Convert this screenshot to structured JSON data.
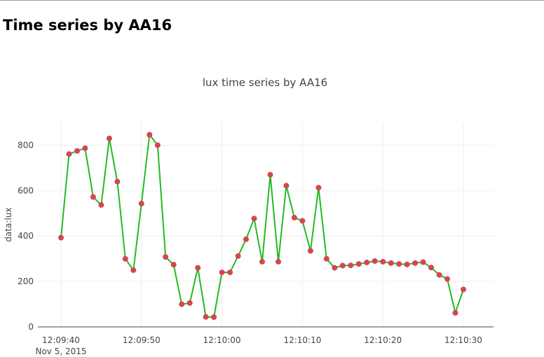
{
  "page": {
    "heading": "Time series by AA16"
  },
  "chart_data": {
    "type": "line",
    "title": "lux time series by AA16",
    "xlabel": "",
    "ylabel": "data:lux",
    "x_date_label": "Nov 5, 2015",
    "x_tick_values": [
      "12:09:40",
      "12:09:50",
      "12:10:00",
      "12:10:10",
      "12:10:20",
      "12:10:30"
    ],
    "x_tick_labels": [
      "12:09:40",
      "12:09:50",
      "12:10:00",
      "12:10:10",
      "12:10:20",
      "12:10:30"
    ],
    "y_tick_values": [
      0,
      200,
      400,
      600,
      800
    ],
    "y_tick_labels": [
      "0",
      "200",
      "400",
      "600",
      "800"
    ],
    "xlim": [
      "12:09:40",
      "12:10:30"
    ],
    "ylim": [
      0,
      900
    ],
    "grid": true,
    "legend": false,
    "line_color": "#22bb22",
    "marker_color": "#d64550",
    "series": [
      {
        "x": [
          "12:09:40",
          "12:09:41",
          "12:09:42",
          "12:09:43",
          "12:09:44",
          "12:09:45",
          "12:09:46",
          "12:09:47",
          "12:09:48",
          "12:09:49",
          "12:09:50",
          "12:09:51",
          "12:09:52",
          "12:09:53",
          "12:09:54",
          "12:09:55",
          "12:09:56",
          "12:09:57",
          "12:09:58",
          "12:09:59",
          "12:10:00",
          "12:10:01",
          "12:10:02",
          "12:10:03",
          "12:10:04",
          "12:10:05",
          "12:10:06",
          "12:10:07",
          "12:10:08",
          "12:10:09",
          "12:10:10",
          "12:10:11",
          "12:10:12",
          "12:10:13",
          "12:10:14",
          "12:10:15",
          "12:10:16",
          "12:10:17",
          "12:10:18",
          "12:10:19",
          "12:10:20",
          "12:10:21",
          "12:10:22",
          "12:10:23",
          "12:10:24",
          "12:10:25",
          "12:10:26",
          "12:10:27",
          "12:10:28",
          "12:10:29",
          "12:10:30"
        ],
        "y": [
          393,
          761,
          775,
          787,
          572,
          537,
          830,
          640,
          300,
          250,
          543,
          846,
          800,
          308,
          274,
          100,
          105,
          260,
          44,
          43,
          240,
          240,
          312,
          386,
          477,
          287,
          670,
          287,
          622,
          481,
          467,
          335,
          613,
          300,
          260,
          270,
          271,
          277,
          284,
          290,
          287,
          281,
          277,
          275,
          281,
          285,
          261,
          229,
          211,
          62,
          165
        ]
      }
    ]
  }
}
